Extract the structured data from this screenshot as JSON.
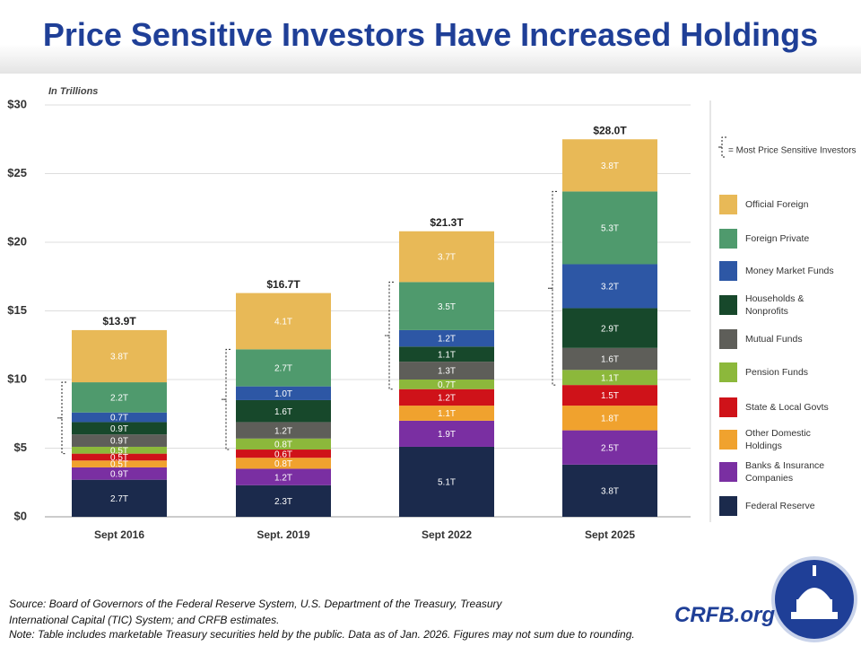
{
  "chart_data": {
    "type": "stacked-bar",
    "title": "Price Sensitive Investors Have Increased Holdings",
    "subtitle": "In Trillions",
    "categories": [
      "Sept 2016",
      "Sept. 2019",
      "Sept 2022",
      "Sept 2025"
    ],
    "ylim": [
      0,
      30
    ],
    "yticks": [
      {
        "value": 0,
        "label": "$0"
      },
      {
        "value": 5,
        "label": "$5"
      },
      {
        "value": 10,
        "label": "$10"
      },
      {
        "value": 15,
        "label": "$15"
      },
      {
        "value": 20,
        "label": "$20"
      },
      {
        "value": 25,
        "label": "$25"
      },
      {
        "value": 30,
        "label": "$30"
      }
    ],
    "series": [
      {
        "name": "Federal Reserve",
        "color": "#1b2a4c",
        "values": [
          2.7,
          2.3,
          5.1,
          3.8
        ],
        "value_labels": [
          "2.7T",
          "2.3T",
          "5.1T",
          "3.8T"
        ]
      },
      {
        "name": "Banks & Insurance Companies",
        "color": "#7a2fa2",
        "values": [
          0.9,
          1.2,
          1.9,
          2.5
        ],
        "value_labels": [
          "0.9T",
          "1.2T",
          "1.9T",
          "2.5T"
        ]
      },
      {
        "name": "Other Domestic Holdings",
        "color": "#f0a22e",
        "values": [
          0.5,
          0.8,
          1.1,
          1.8
        ],
        "value_labels": [
          "0.5T",
          "0.8T",
          "1.1T",
          "1.8T"
        ]
      },
      {
        "name": "State & Local Govts",
        "color": "#cf1219",
        "values": [
          0.5,
          0.6,
          1.2,
          1.5
        ],
        "value_labels": [
          "0.5T",
          "0.6T",
          "1.2T",
          "1.5T"
        ]
      },
      {
        "name": "Pension Funds",
        "color": "#8cb83b",
        "values": [
          0.5,
          0.8,
          0.7,
          1.1
        ],
        "value_labels": [
          "0.5T",
          "0.8T",
          "0.7T",
          "1.1T"
        ]
      },
      {
        "name": "Mutual Funds",
        "color": "#5e5e59",
        "values": [
          0.9,
          1.2,
          1.3,
          1.6
        ],
        "value_labels": [
          "0.9T",
          "1.2T",
          "1.3T",
          "1.6T"
        ]
      },
      {
        "name": "Households & Nonprofits",
        "color": "#17482b",
        "values": [
          0.9,
          1.6,
          1.1,
          2.9
        ],
        "value_labels": [
          "0.9T",
          "1.6T",
          "1.1T",
          "2.9T"
        ]
      },
      {
        "name": "Money Market Funds",
        "color": "#2d57a5",
        "values": [
          0.7,
          1.0,
          1.2,
          3.2
        ],
        "value_labels": [
          "0.7T",
          "1.0T",
          "1.2T",
          "3.2T"
        ]
      },
      {
        "name": "Foreign Private",
        "color": "#4f9a6d",
        "values": [
          2.2,
          2.7,
          3.5,
          5.3
        ],
        "value_labels": [
          "2.2T",
          "2.7T",
          "3.5T",
          "5.3T"
        ]
      },
      {
        "name": "Official Foreign",
        "color": "#e8b957",
        "values": [
          3.8,
          4.1,
          3.7,
          3.8
        ],
        "value_labels": [
          "3.8T",
          "4.1T",
          "3.7T",
          "3.8T"
        ]
      }
    ],
    "totals": {
      "values": [
        13.9,
        16.7,
        21.3,
        28.0
      ],
      "value_labels": [
        "$13.9T",
        "$16.7T",
        "$21.3T",
        "$28.0T"
      ]
    },
    "bracket_note": "= Most Price Sensitive Investors",
    "source": "Source: Board of Governors of the Federal Reserve System, U.S. Department of the Treasury, Treasury International Capital (TIC) System; and CRFB estimates.",
    "note": "Note: Table includes marketable Treasury securities held by the public. Data as of Jan. 2026. Figures may not sum due to rounding.",
    "brand": "CRFB.org"
  }
}
